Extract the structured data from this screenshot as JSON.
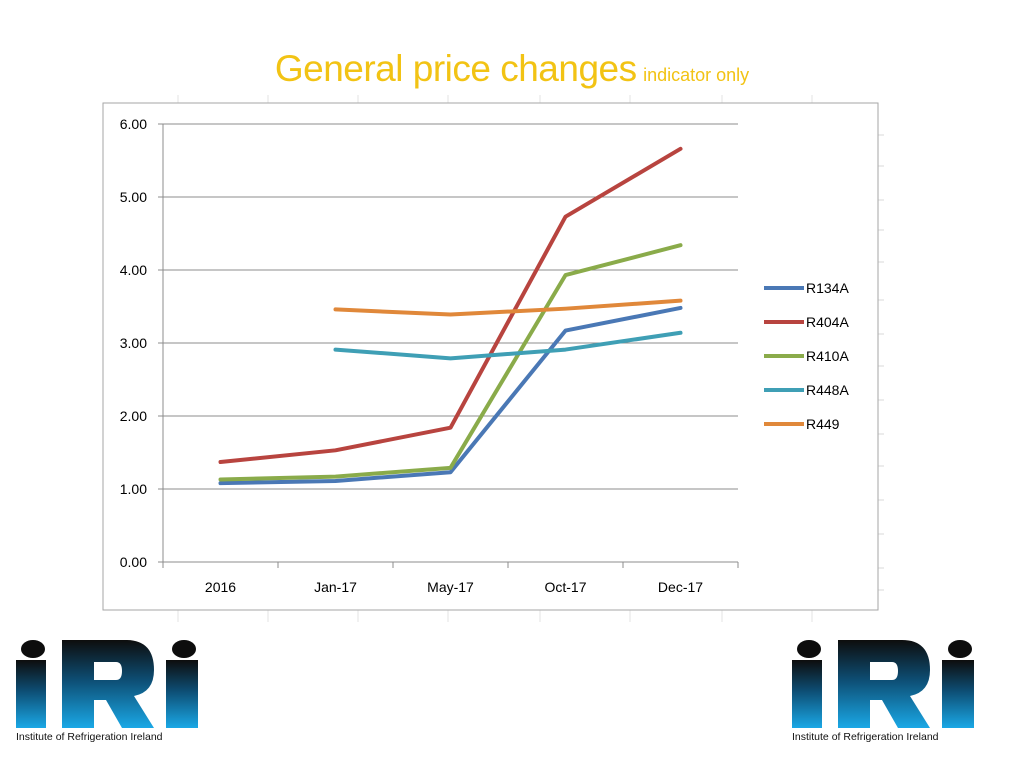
{
  "slide": {
    "title": "General price changes",
    "subtitle": "indicator only",
    "title_color": "#f2c314"
  },
  "chart_data": {
    "type": "line",
    "title": "",
    "xlabel": "",
    "ylabel": "",
    "categories": [
      "2016",
      "Jan-17",
      "May-17",
      "Oct-17",
      "Dec-17"
    ],
    "ylim": [
      0,
      6
    ],
    "yticks": [
      "0.00",
      "1.00",
      "2.00",
      "3.00",
      "4.00",
      "5.00",
      "6.00"
    ],
    "grid": true,
    "legend_position": "right",
    "series": [
      {
        "name": "R134A",
        "color": "#4a78b5",
        "values": [
          1.08,
          1.11,
          1.23,
          3.17,
          3.48
        ]
      },
      {
        "name": "R404A",
        "color": "#b8443f",
        "values": [
          1.37,
          1.53,
          1.84,
          4.73,
          5.66
        ]
      },
      {
        "name": "R410A",
        "color": "#8aab4a",
        "values": [
          1.13,
          1.17,
          1.29,
          3.93,
          4.34
        ]
      },
      {
        "name": "R448A",
        "color": "#3f9fb5",
        "values": [
          null,
          2.91,
          2.79,
          2.91,
          3.14
        ]
      },
      {
        "name": "R449",
        "color": "#e0883a",
        "values": [
          null,
          3.46,
          3.39,
          3.47,
          3.58
        ]
      }
    ]
  },
  "logos": [
    {
      "side": "left",
      "letters": "IRI",
      "caption": "Institute of Refrigeration Ireland",
      "color": "#1aa0dc"
    },
    {
      "side": "right",
      "letters": "IRI",
      "caption": "Institute of Refrigeration Ireland",
      "color": "#1aa0dc"
    }
  ]
}
